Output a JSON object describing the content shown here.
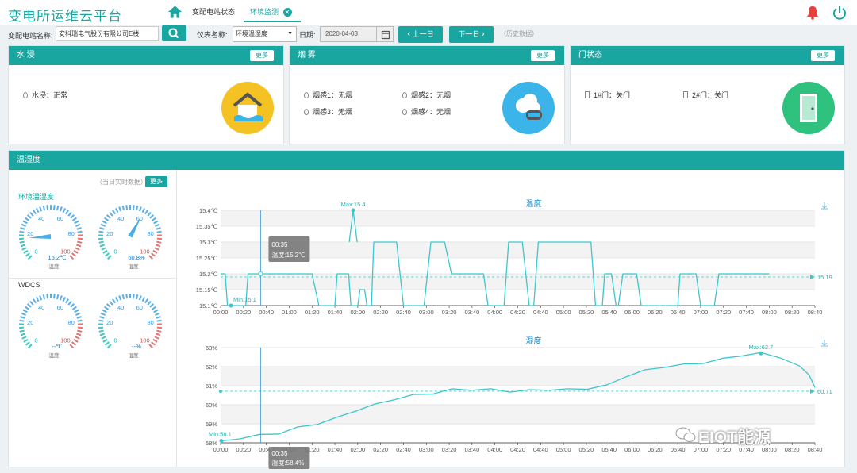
{
  "app": {
    "title": "变电所运维云平台",
    "tabs": [
      {
        "label": "变配电站状态"
      },
      {
        "label": "环境监测",
        "close": "✕"
      }
    ]
  },
  "search": {
    "label": "变配电站名称:",
    "value": "安科瑞电气股份有限公司E楼"
  },
  "panels": {
    "water": {
      "title": "水 浸",
      "more": "更多",
      "items": [
        "水浸：正常"
      ],
      "icon": "flood-house-icon",
      "color": "#f4c223"
    },
    "smoke": {
      "title": "烟 雾",
      "more": "更多",
      "items": [
        "烟感1：无烟",
        "烟感2：无烟",
        "烟感3：无烟",
        "烟感4：无烟"
      ],
      "icon": "smoke-detector-icon",
      "color": "#3bb4ea"
    },
    "door": {
      "title": "门状态",
      "more": "更多",
      "items": [
        "1#门：关门",
        "2#门：关门"
      ],
      "icon": "door-icon",
      "color": "#2ec27e"
    }
  },
  "th": {
    "title": "温湿度",
    "realtime": "（当日实时数据）",
    "more": "更多",
    "groups": [
      {
        "name": "环境温湿度",
        "temp": {
          "value": 15.2,
          "display": "15.2℃",
          "label": "温度",
          "min": 0,
          "max": 100,
          "ticks": [
            "0",
            "20",
            "40",
            "60",
            "80",
            "100"
          ]
        },
        "hum": {
          "value": 60.8,
          "display": "60.8%",
          "label": "湿度",
          "min": 0,
          "max": 100,
          "ticks": [
            "0",
            "20",
            "40",
            "60",
            "80",
            "100"
          ]
        }
      },
      {
        "name": "WDCS",
        "temp": {
          "value": null,
          "display": "--℃",
          "label": "温度",
          "min": 0,
          "max": 100,
          "ticks": [
            "0",
            "20",
            "40",
            "60",
            "80",
            "100"
          ]
        },
        "hum": {
          "value": null,
          "display": "--%",
          "label": "湿度",
          "min": 0,
          "max": 100,
          "ticks": [
            "0",
            "20",
            "40",
            "60",
            "80",
            "100"
          ]
        }
      }
    ],
    "filter": {
      "meter_label": "仪表名称:",
      "meter_value": "环境温湿度",
      "date_label": "日期:",
      "date_value": "2020-04-03",
      "prev": "上一日",
      "next": "下一日",
      "history": "（历史数据）"
    }
  },
  "chart_data": [
    {
      "type": "line",
      "title": "温度",
      "ylim": [
        15.1,
        15.4
      ],
      "yticks": [
        "15.1℃",
        "15.15℃",
        "15.2℃",
        "15.25℃",
        "15.3℃",
        "15.35℃",
        "15.4℃"
      ],
      "xticks": [
        "00:00",
        "00:20",
        "00:40",
        "01:00",
        "01:20",
        "01:40",
        "02:00",
        "02:20",
        "02:40",
        "03:00",
        "03:20",
        "03:40",
        "04:00",
        "04:20",
        "04:40",
        "05:00",
        "05:20",
        "05:40",
        "06:00",
        "06:20",
        "06:40",
        "07:00",
        "07:20",
        "07:40",
        "08:00",
        "08:20",
        "08:40"
      ],
      "max_label": "Max:15.4",
      "min_label": "Min:15.1",
      "avg_label": "15.19",
      "avg": 15.19,
      "tooltip": {
        "time": "00:35",
        "text": "温度:15.2℃"
      },
      "segments": [
        {
          "x0": 0,
          "x1": 2,
          "y": 15.2
        },
        {
          "x0": 3,
          "x1": 11,
          "y": 15.1
        },
        {
          "x0": 12,
          "x1": 40,
          "y": 15.2
        },
        {
          "x0": 43,
          "x1": 50,
          "y": 15.1
        },
        {
          "x0": 51,
          "x1": 56,
          "y": 15.2
        },
        {
          "x0": 57,
          "x1": 60,
          "y": 15.1
        },
        {
          "x0": 61,
          "x1": 63,
          "y": 15.15
        },
        {
          "x0": 64,
          "x1": 66,
          "y": 15.1
        },
        {
          "x0": 67,
          "x1": 77,
          "y": 15.3
        },
        {
          "x0": 80,
          "x1": 85,
          "y": 15.1
        },
        {
          "x0": 86,
          "x1": 89,
          "y": 15.1
        },
        {
          "x0": 92,
          "x1": 98,
          "y": 15.3
        },
        {
          "x0": 101,
          "x1": 115,
          "y": 15.2
        },
        {
          "x0": 117,
          "x1": 124,
          "y": 15.1
        },
        {
          "x0": 126,
          "x1": 132,
          "y": 15.3
        },
        {
          "x0": 135,
          "x1": 137,
          "y": 15.1
        },
        {
          "x0": 139,
          "x1": 144,
          "y": 15.3
        },
        {
          "x0": 147,
          "x1": 150,
          "y": 15.3
        },
        {
          "x0": 151,
          "x1": 162,
          "y": 15.3
        },
        {
          "x0": 164,
          "x1": 167,
          "y": 15.1
        },
        {
          "x0": 168,
          "x1": 171,
          "y": 15.2
        },
        {
          "x0": 173,
          "x1": 174,
          "y": 15.1
        },
        {
          "x0": 176,
          "x1": 182,
          "y": 15.2
        },
        {
          "x0": 184,
          "x1": 200,
          "y": 15.1
        },
        {
          "x0": 201,
          "x1": 208,
          "y": 15.2
        },
        {
          "x0": 210,
          "x1": 216,
          "y": 15.1
        },
        {
          "x0": 218,
          "x1": 237,
          "y": 15.2
        },
        {
          "x0": 238,
          "x1": 240,
          "y": 15.2
        }
      ],
      "spike": {
        "x": 58,
        "y": 15.4
      }
    },
    {
      "type": "line",
      "title": "湿度",
      "ylim": [
        58,
        63
      ],
      "yticks": [
        "58%",
        "59%",
        "60%",
        "61%",
        "62%",
        "63%"
      ],
      "xticks": [
        "00:00",
        "00:20",
        "00:40",
        "01:00",
        "01:20",
        "01:40",
        "02:00",
        "02:20",
        "02:40",
        "03:00",
        "03:20",
        "03:40",
        "04:00",
        "04:20",
        "04:40",
        "05:00",
        "05:20",
        "05:40",
        "06:00",
        "06:20",
        "06:40",
        "07:00",
        "07:20",
        "07:40",
        "08:00",
        "08:20",
        "08:40"
      ],
      "max_label": "Max:62.7",
      "min_label": "Min:58.1",
      "avg_label": "60.71",
      "avg": 60.71,
      "tooltip": {
        "time": "00:35",
        "text": "湿度:58.4%"
      },
      "points": [
        [
          0,
          58.1
        ],
        [
          10,
          58.25
        ],
        [
          20,
          58.4
        ],
        [
          30,
          58.5
        ],
        [
          40,
          58.8
        ],
        [
          50,
          59.0
        ],
        [
          60,
          59.3
        ],
        [
          70,
          59.7
        ],
        [
          80,
          60.0
        ],
        [
          90,
          60.3
        ],
        [
          100,
          60.5
        ],
        [
          110,
          60.6
        ],
        [
          120,
          60.8
        ],
        [
          130,
          60.8
        ],
        [
          140,
          60.8
        ],
        [
          150,
          60.7
        ],
        [
          160,
          60.75
        ],
        [
          170,
          60.8
        ],
        [
          180,
          60.8
        ],
        [
          190,
          60.85
        ],
        [
          200,
          61.0
        ],
        [
          210,
          61.5
        ],
        [
          220,
          61.8
        ],
        [
          230,
          62.0
        ],
        [
          240,
          62.1
        ],
        [
          250,
          62.2
        ],
        [
          260,
          62.4
        ],
        [
          270,
          62.6
        ],
        [
          280,
          62.7
        ],
        [
          290,
          62.5
        ],
        [
          300,
          62.0
        ],
        [
          305,
          61.6
        ],
        [
          308,
          60.9
        ]
      ]
    }
  ],
  "watermark": "EIOT能源"
}
